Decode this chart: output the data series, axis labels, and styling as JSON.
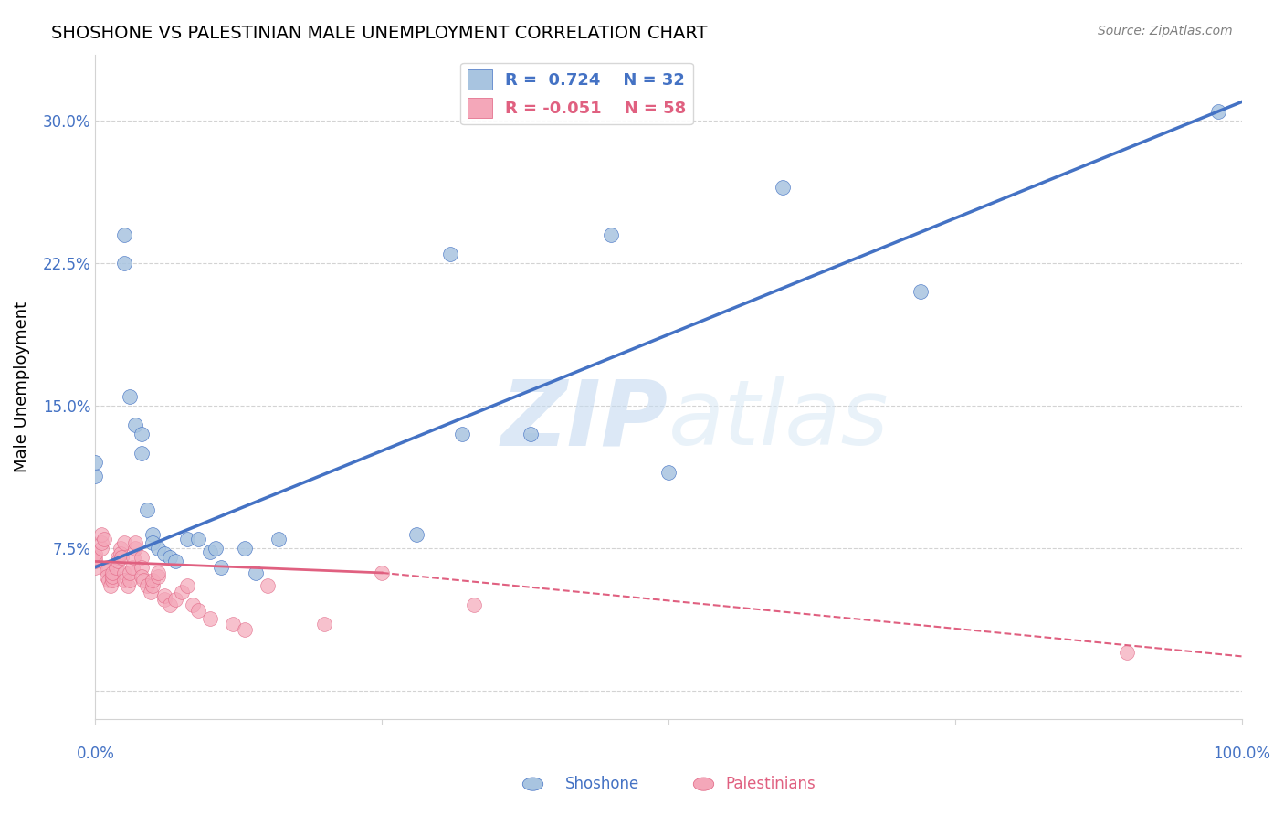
{
  "title": "SHOSHONE VS PALESTINIAN MALE UNEMPLOYMENT CORRELATION CHART",
  "source": "Source: ZipAtlas.com",
  "ylabel": "Male Unemployment",
  "watermark_zip": "ZIP",
  "watermark_atlas": "atlas",
  "xlim": [
    0.0,
    1.0
  ],
  "ylim": [
    -0.015,
    0.335
  ],
  "yticks": [
    0.0,
    0.075,
    0.15,
    0.225,
    0.3
  ],
  "ytick_labels": [
    "",
    "7.5%",
    "15.0%",
    "22.5%",
    "30.0%"
  ],
  "legend_r1": "R =  0.724",
  "legend_n1": "N = 32",
  "legend_r2": "R = -0.051",
  "legend_n2": "N = 58",
  "shoshone_color": "#a8c4e0",
  "shoshone_line_color": "#4472c4",
  "palestinian_color": "#f4a7b9",
  "palestinian_line_color": "#e06080",
  "shoshone_points": [
    [
      0.0,
      0.113
    ],
    [
      0.0,
      0.12
    ],
    [
      0.025,
      0.24
    ],
    [
      0.025,
      0.225
    ],
    [
      0.03,
      0.155
    ],
    [
      0.035,
      0.14
    ],
    [
      0.04,
      0.135
    ],
    [
      0.04,
      0.125
    ],
    [
      0.045,
      0.095
    ],
    [
      0.05,
      0.082
    ],
    [
      0.05,
      0.078
    ],
    [
      0.055,
      0.075
    ],
    [
      0.06,
      0.072
    ],
    [
      0.065,
      0.07
    ],
    [
      0.07,
      0.068
    ],
    [
      0.08,
      0.08
    ],
    [
      0.09,
      0.08
    ],
    [
      0.1,
      0.073
    ],
    [
      0.105,
      0.075
    ],
    [
      0.11,
      0.065
    ],
    [
      0.13,
      0.075
    ],
    [
      0.14,
      0.062
    ],
    [
      0.16,
      0.08
    ],
    [
      0.28,
      0.082
    ],
    [
      0.31,
      0.23
    ],
    [
      0.32,
      0.135
    ],
    [
      0.38,
      0.135
    ],
    [
      0.45,
      0.24
    ],
    [
      0.5,
      0.115
    ],
    [
      0.6,
      0.265
    ],
    [
      0.72,
      0.21
    ],
    [
      0.98,
      0.305
    ]
  ],
  "palestinian_points": [
    [
      0.0,
      0.065
    ],
    [
      0.0,
      0.068
    ],
    [
      0.0,
      0.07
    ],
    [
      0.0,
      0.072
    ],
    [
      0.005,
      0.075
    ],
    [
      0.005,
      0.078
    ],
    [
      0.005,
      0.082
    ],
    [
      0.008,
      0.08
    ],
    [
      0.01,
      0.065
    ],
    [
      0.01,
      0.063
    ],
    [
      0.01,
      0.06
    ],
    [
      0.012,
      0.058
    ],
    [
      0.013,
      0.055
    ],
    [
      0.015,
      0.058
    ],
    [
      0.015,
      0.06
    ],
    [
      0.015,
      0.062
    ],
    [
      0.018,
      0.065
    ],
    [
      0.02,
      0.07
    ],
    [
      0.02,
      0.068
    ],
    [
      0.022,
      0.075
    ],
    [
      0.022,
      0.072
    ],
    [
      0.023,
      0.07
    ],
    [
      0.025,
      0.078
    ],
    [
      0.025,
      0.062
    ],
    [
      0.025,
      0.058
    ],
    [
      0.028,
      0.055
    ],
    [
      0.03,
      0.058
    ],
    [
      0.03,
      0.062
    ],
    [
      0.032,
      0.065
    ],
    [
      0.033,
      0.07
    ],
    [
      0.035,
      0.075
    ],
    [
      0.035,
      0.078
    ],
    [
      0.04,
      0.07
    ],
    [
      0.04,
      0.065
    ],
    [
      0.04,
      0.06
    ],
    [
      0.042,
      0.058
    ],
    [
      0.045,
      0.055
    ],
    [
      0.048,
      0.052
    ],
    [
      0.05,
      0.055
    ],
    [
      0.05,
      0.058
    ],
    [
      0.055,
      0.06
    ],
    [
      0.055,
      0.062
    ],
    [
      0.06,
      0.048
    ],
    [
      0.06,
      0.05
    ],
    [
      0.065,
      0.045
    ],
    [
      0.07,
      0.048
    ],
    [
      0.075,
      0.052
    ],
    [
      0.08,
      0.055
    ],
    [
      0.085,
      0.045
    ],
    [
      0.09,
      0.042
    ],
    [
      0.1,
      0.038
    ],
    [
      0.12,
      0.035
    ],
    [
      0.13,
      0.032
    ],
    [
      0.15,
      0.055
    ],
    [
      0.2,
      0.035
    ],
    [
      0.25,
      0.062
    ],
    [
      0.33,
      0.045
    ],
    [
      0.9,
      0.02
    ]
  ],
  "shoshone_line": [
    [
      0.0,
      0.065
    ],
    [
      1.0,
      0.31
    ]
  ],
  "palestinian_line_solid": [
    [
      0.0,
      0.068
    ],
    [
      0.25,
      0.062
    ]
  ],
  "palestinian_line_dashed": [
    [
      0.25,
      0.062
    ],
    [
      1.0,
      0.018
    ]
  ]
}
